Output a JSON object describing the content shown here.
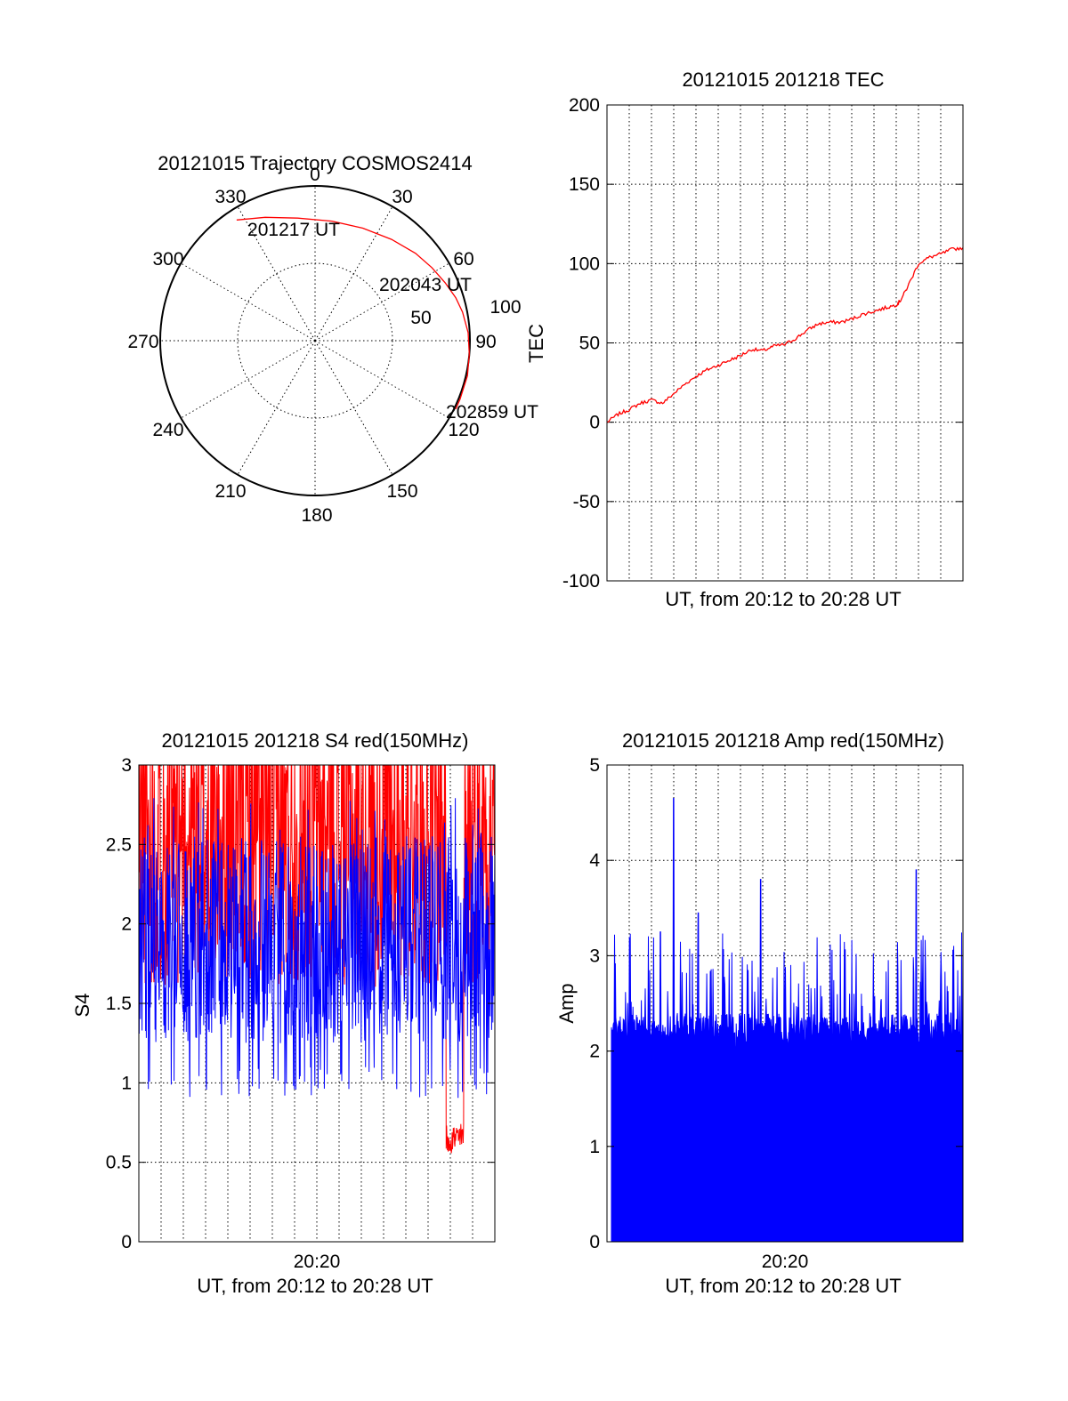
{
  "chart_data": [
    {
      "type": "polar",
      "title": "20121015 Trajectory COSMOS2414",
      "angle_labels": [
        "0",
        "30",
        "60",
        "90",
        "120",
        "150",
        "180",
        "210",
        "240",
        "270",
        "300",
        "330"
      ],
      "radial_labels": [
        "50",
        "100"
      ],
      "series": [
        {
          "color": "#ff0000",
          "points": [
            {
              "azimuth": 327,
              "zenith": 93
            },
            {
              "azimuth": 338,
              "zenith": 86
            },
            {
              "azimuth": 352,
              "zenith": 80
            },
            {
              "azimuth": 8,
              "zenith": 78
            },
            {
              "azimuth": 23,
              "zenith": 79
            },
            {
              "azimuth": 37,
              "zenith": 82
            },
            {
              "azimuth": 49,
              "zenith": 86
            },
            {
              "azimuth": 58,
              "zenith": 89
            },
            {
              "azimuth": 66,
              "zenith": 92
            },
            {
              "azimuth": 73,
              "zenith": 95
            },
            {
              "azimuth": 79,
              "zenith": 97
            },
            {
              "azimuth": 87,
              "zenith": 99
            },
            {
              "azimuth": 95,
              "zenith": 100
            },
            {
              "azimuth": 103,
              "zenith": 101
            },
            {
              "azimuth": 112,
              "zenith": 101
            },
            {
              "azimuth": 116,
              "zenith": 101
            }
          ]
        }
      ],
      "annotations": [
        {
          "text": "201217 UT",
          "azimuth": 327,
          "zenith": 93
        },
        {
          "text": "202043 UT",
          "azimuth": 60,
          "zenith": 90
        },
        {
          "text": "202859 UT",
          "azimuth": 116,
          "zenith": 101
        }
      ]
    },
    {
      "type": "line",
      "title": "20121015 201218 TEC",
      "xlabel": "UT, from 20:12 to 20:28 UT",
      "ylabel": "TEC",
      "ylim": [
        -100,
        200
      ],
      "yticks": [
        "-100",
        "-50",
        "0",
        "50",
        "100",
        "150",
        "200"
      ],
      "grid": true,
      "series": [
        {
          "color": "#ff0000",
          "x": [
            0,
            0.5,
            1,
            1.5,
            2,
            2.5,
            3,
            3.5,
            4,
            4.5,
            5,
            5.5,
            6,
            6.5,
            7,
            7.5,
            8,
            8.5,
            9,
            9.5,
            10,
            10.5,
            11,
            11.5,
            12,
            12.5,
            13,
            13.2,
            13.5,
            14,
            14.5,
            15,
            15.5,
            16
          ],
          "values": [
            0,
            5,
            8,
            12,
            14,
            12,
            18,
            24,
            29,
            33,
            36,
            39,
            42,
            46,
            45,
            48,
            49,
            53,
            58,
            62,
            63,
            63,
            65,
            68,
            70,
            72,
            74,
            77,
            85,
            100,
            104,
            106,
            109,
            110
          ]
        }
      ]
    },
    {
      "type": "line",
      "title": "20121015 201218 S4 red(150MHz)",
      "xlabel": "UT, from 20:12 to 20:28 UT",
      "ylabel": "S4",
      "ylim": [
        0,
        3
      ],
      "yticks": [
        "0",
        "0.5",
        "1",
        "1.5",
        "2",
        "2.5",
        "3"
      ],
      "xticks": [
        {
          "x": 8,
          "label": "20:20"
        }
      ],
      "grid": true,
      "series": [
        {
          "color": "#ff0000",
          "x_range": [
            0,
            16
          ],
          "typical_range": [
            1.6,
            3.0
          ],
          "dip": {
            "x": [
              13.8,
              14.6
            ],
            "values": [
              0.55,
              0.75
            ]
          }
        },
        {
          "color": "#0000ff",
          "x_range": [
            0,
            16
          ],
          "typical_range": [
            1.0,
            2.3
          ]
        }
      ]
    },
    {
      "type": "bar",
      "title": "20121015 201218 Amp red(150MHz)",
      "xlabel": "UT, from 20:12 to 20:28 UT",
      "ylabel": "Amp",
      "ylim": [
        0,
        5
      ],
      "yticks": [
        "0",
        "1",
        "2",
        "3",
        "4",
        "5"
      ],
      "xticks": [
        {
          "x": 8,
          "label": "20:20"
        }
      ],
      "grid": true,
      "series": [
        {
          "color": "#0000ff",
          "x_range": [
            0.2,
            16
          ],
          "baseline": 2.05,
          "peaks": [
            {
              "x": 3.0,
              "value": 4.65
            },
            {
              "x": 6.9,
              "value": 3.8
            },
            {
              "x": 4.1,
              "value": 3.45
            },
            {
              "x": 13.9,
              "value": 3.9
            },
            {
              "x": 2.4,
              "value": 3.25
            }
          ]
        }
      ]
    }
  ]
}
